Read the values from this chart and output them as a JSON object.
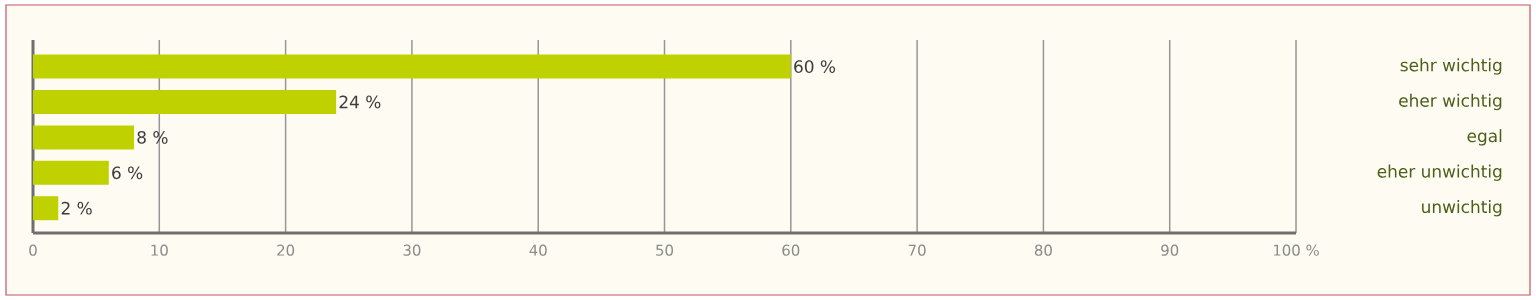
{
  "chart_data": {
    "type": "bar",
    "orientation": "horizontal",
    "categories": [
      "sehr wichtig",
      "eher wichtig",
      "egal",
      "eher unwichtig",
      "unwichtig"
    ],
    "values": [
      60,
      24,
      8,
      6,
      2
    ],
    "value_labels": [
      "60 %",
      "24 %",
      "8 %",
      "6 %",
      "2 %"
    ],
    "color": "#bfd200",
    "xlim": [
      0,
      100
    ],
    "xticks": [
      0,
      10,
      20,
      30,
      40,
      50,
      60,
      70,
      80,
      90,
      {
        "value": 100,
        "label": "100 %"
      }
    ],
    "grid": "x"
  }
}
